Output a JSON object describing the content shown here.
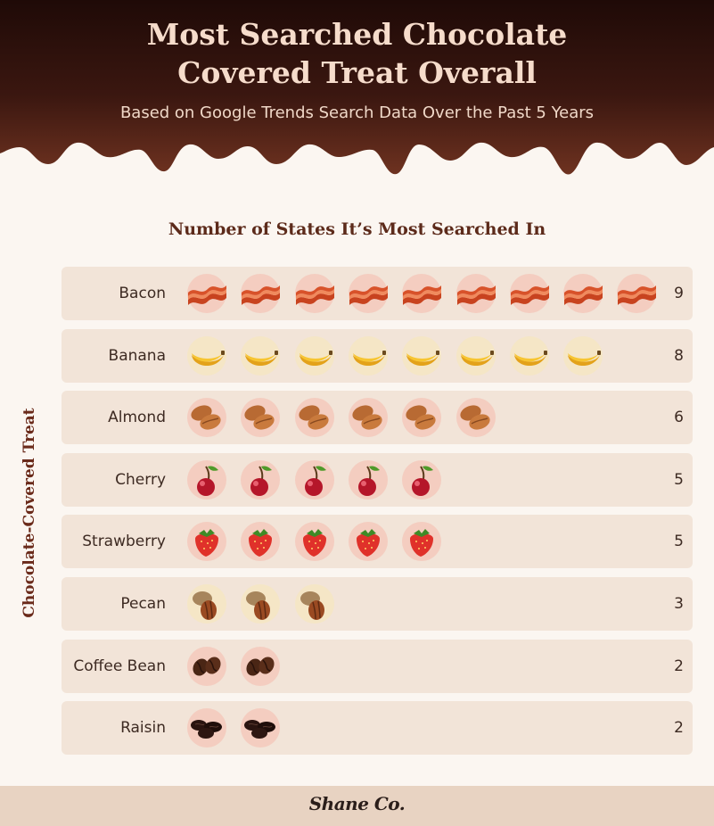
{
  "header": {
    "title_line1": "Most Searched Chocolate",
    "title_line2": "Covered Treat Overall",
    "subtitle": "Based on Google Trends Search Data Over the Past 5 Years"
  },
  "colors": {
    "chocolate_dark": "#1f0a07",
    "chocolate_mid": "#4a1d12",
    "chocolate_light": "#7a3a24",
    "background": "#fbf6f1",
    "row_background": "#f2e4d8",
    "footer": "#e8d3c2"
  },
  "chart_data": {
    "type": "bar",
    "title": "Number of States It’s Most Searched In",
    "ylabel": "Chocolate-Covered Treat",
    "xlabel": "",
    "categories": [
      "Bacon",
      "Banana",
      "Almond",
      "Cherry",
      "Strawberry",
      "Pecan",
      "Coffee Bean",
      "Raisin"
    ],
    "values": [
      9,
      8,
      6,
      5,
      5,
      3,
      2,
      2
    ],
    "icons": [
      "bacon-icon",
      "banana-icon",
      "almond-icon",
      "cherry-icon",
      "strawberry-icon",
      "pecan-icon",
      "coffee-bean-icon",
      "raisin-icon"
    ],
    "value_labels": [
      "9",
      "8",
      "6",
      "5",
      "5",
      "3",
      "2",
      "2"
    ],
    "grid": false,
    "legend": "none"
  },
  "footer": {
    "brand": "Shane Co."
  }
}
